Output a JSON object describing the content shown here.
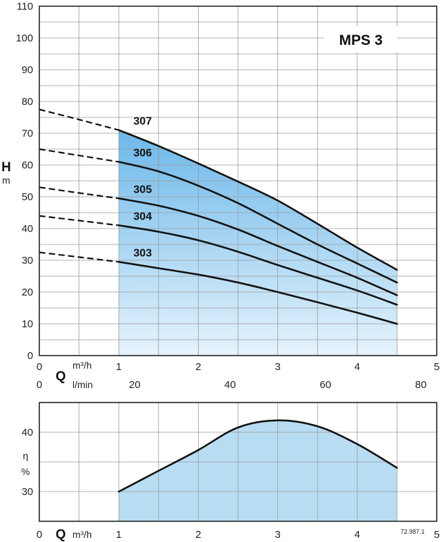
{
  "chart_data": [
    {
      "type": "line",
      "title": "MPS 3",
      "ylabel": "H",
      "yunit": "m",
      "xlabel": "Q",
      "xunit_primary": "m³/h",
      "xunit_secondary": "l/min",
      "xlim": [
        0,
        5
      ],
      "ylim": [
        0,
        110
      ],
      "x_ticks": [
        "0",
        "1",
        "2",
        "3",
        "4",
        "5"
      ],
      "x_ticks_secondary": [
        {
          "value": 0,
          "label": "0"
        },
        {
          "value": 20,
          "label": "20"
        },
        {
          "value": 40,
          "label": "40"
        },
        {
          "value": 60,
          "label": "60"
        },
        {
          "value": 80,
          "label": "80"
        }
      ],
      "y_ticks": [
        "0",
        "10",
        "20",
        "30",
        "40",
        "50",
        "60",
        "70",
        "80",
        "90",
        "100",
        "110"
      ],
      "grid": true,
      "operating_range": [
        1,
        4.5
      ],
      "series": [
        {
          "name": "307",
          "x": [
            0,
            0.5,
            1,
            1.5,
            2,
            2.5,
            3,
            3.5,
            4,
            4.5
          ],
          "y": [
            77.5,
            74.3,
            71,
            66,
            60.5,
            54.8,
            48.8,
            41.5,
            34,
            27
          ],
          "dashed_until": 1
        },
        {
          "name": "306",
          "x": [
            0,
            0.5,
            1,
            1.5,
            2,
            2.5,
            3,
            3.5,
            4,
            4.5
          ],
          "y": [
            65,
            63,
            61,
            58,
            53.5,
            48,
            41.5,
            35,
            29,
            23
          ],
          "dashed_until": 1
        },
        {
          "name": "305",
          "x": [
            0,
            0.5,
            1,
            1.5,
            2,
            2.5,
            3,
            3.5,
            4,
            4.5
          ],
          "y": [
            53,
            51.2,
            49.5,
            47.2,
            44,
            39.7,
            34.5,
            29.5,
            24.5,
            19
          ],
          "dashed_until": 1
        },
        {
          "name": "304",
          "x": [
            0,
            0.5,
            1,
            1.5,
            2,
            2.5,
            3,
            3.5,
            4,
            4.5
          ],
          "y": [
            44,
            42.5,
            41,
            39,
            36.3,
            32.7,
            28.5,
            24.5,
            20.5,
            16
          ],
          "dashed_until": 1
        },
        {
          "name": "303",
          "x": [
            0,
            0.5,
            1,
            1.5,
            2,
            2.5,
            3,
            3.5,
            4,
            4.5
          ],
          "y": [
            32.5,
            31,
            29.5,
            27.5,
            25.5,
            23,
            20,
            16.8,
            13.5,
            10
          ],
          "dashed_until": 1
        }
      ]
    },
    {
      "type": "area",
      "ylabel": "η",
      "yunit": "%",
      "xlabel": "Q",
      "xunit": "m³/h",
      "xlim": [
        0,
        5
      ],
      "ylim": [
        25,
        45
      ],
      "x_ticks": [
        "0",
        "1",
        "2",
        "3",
        "4",
        "5"
      ],
      "y_ticks": [
        {
          "value": 30,
          "label": "30"
        },
        {
          "value": 40,
          "label": "40"
        }
      ],
      "grid": true,
      "series": [
        {
          "x": [
            1,
            1.5,
            2,
            2.5,
            3,
            3.5,
            4,
            4.5
          ],
          "y": [
            30,
            33.5,
            37,
            40.8,
            42,
            41,
            38,
            34
          ]
        }
      ]
    }
  ],
  "reference_code": "72.987.1"
}
